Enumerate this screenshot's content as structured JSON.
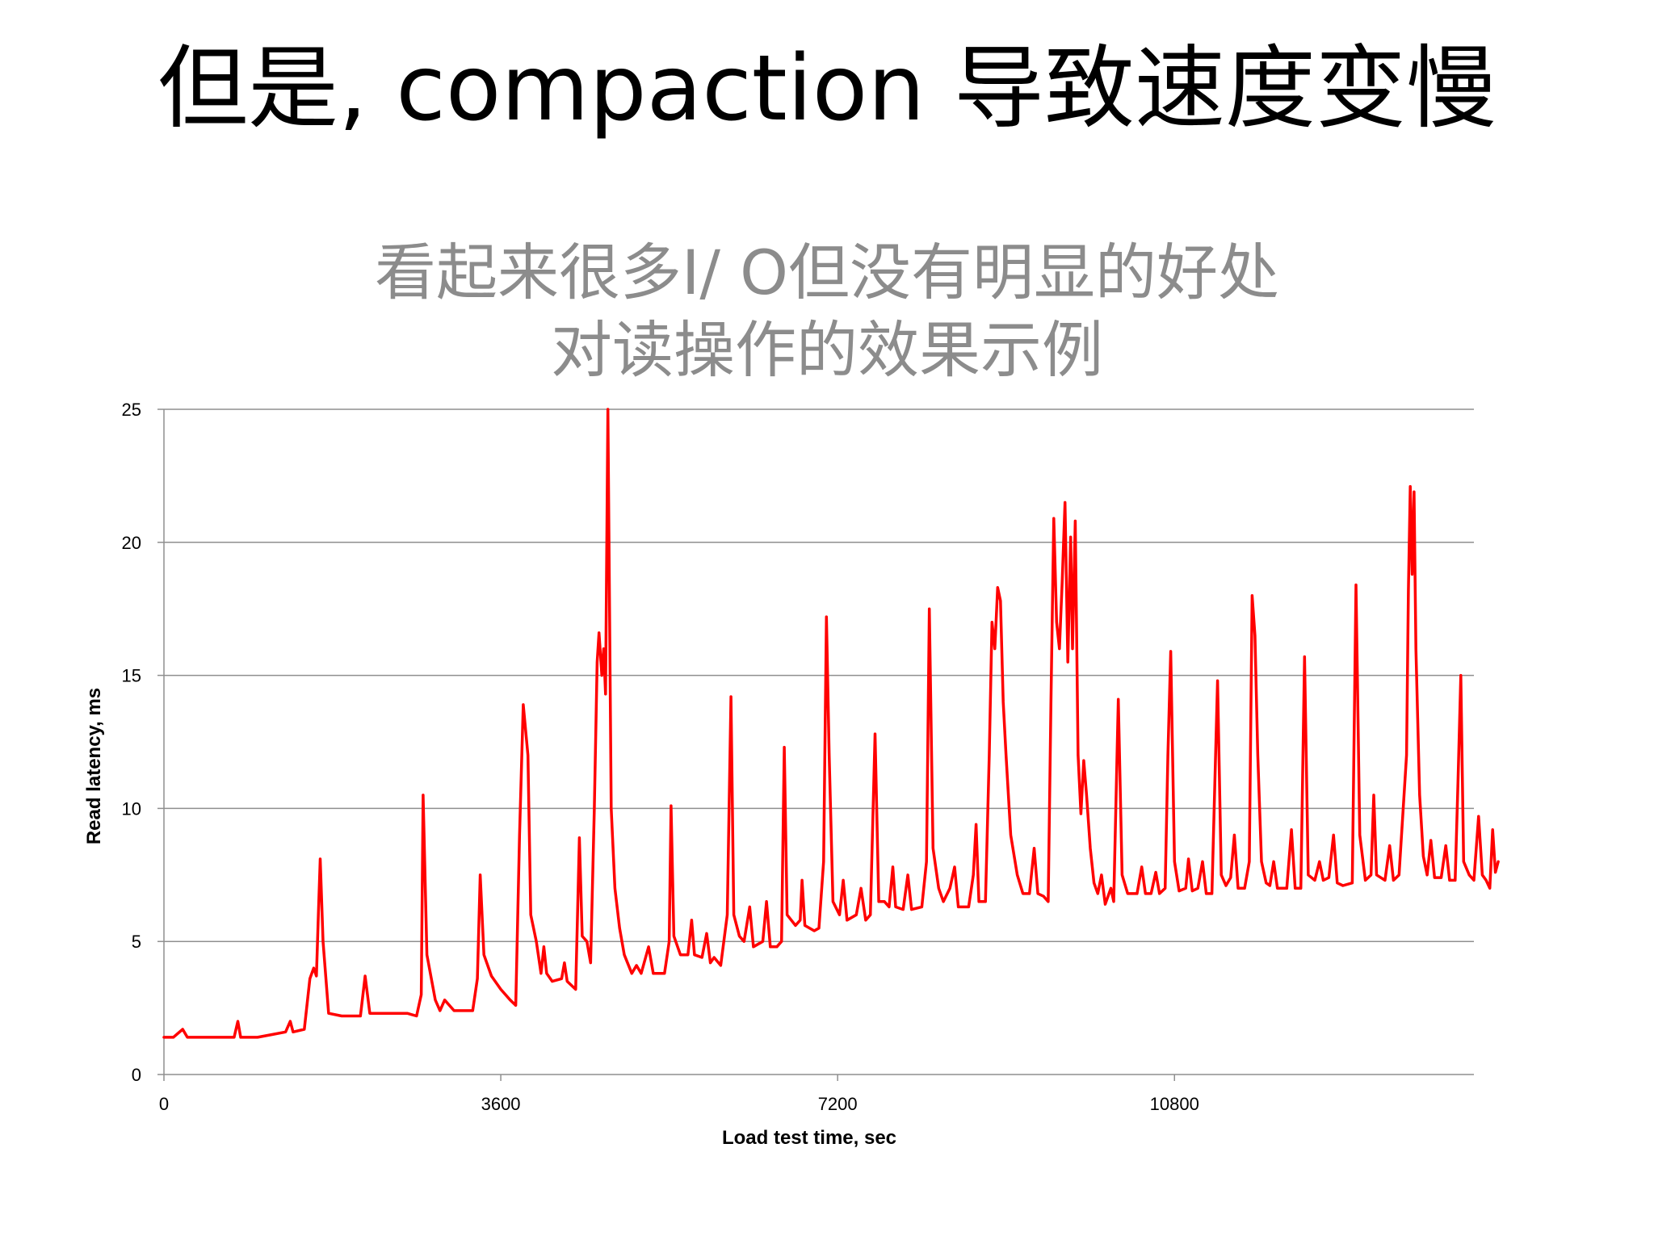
{
  "slide": {
    "title": "但是, compaction 导致速度变慢"
  },
  "chart_data": {
    "type": "line",
    "title_lines": [
      "看起来很多I/ O但没有明显的好处",
      "对读操作的效果示例"
    ],
    "xlabel": "Load test time, sec",
    "ylabel": "Read latency, ms",
    "xlim": [
      0,
      14000
    ],
    "ylim": [
      0,
      25
    ],
    "x_ticks": [
      0,
      3600,
      7200,
      10800
    ],
    "y_ticks": [
      0,
      5,
      10,
      15,
      20,
      25
    ],
    "grid": "horizontal",
    "legend": "none",
    "series": [
      {
        "color": "#ff0000",
        "points": [
          [
            0,
            1.4
          ],
          [
            100,
            1.4
          ],
          [
            200,
            1.7
          ],
          [
            250,
            1.4
          ],
          [
            500,
            1.4
          ],
          [
            750,
            1.4
          ],
          [
            790,
            2.0
          ],
          [
            820,
            1.4
          ],
          [
            1000,
            1.4
          ],
          [
            1150,
            1.5
          ],
          [
            1300,
            1.6
          ],
          [
            1350,
            2.0
          ],
          [
            1380,
            1.6
          ],
          [
            1500,
            1.7
          ],
          [
            1560,
            3.6
          ],
          [
            1600,
            4.0
          ],
          [
            1630,
            3.7
          ],
          [
            1650,
            6.0
          ],
          [
            1670,
            8.1
          ],
          [
            1700,
            5.0
          ],
          [
            1760,
            2.3
          ],
          [
            1900,
            2.2
          ],
          [
            2100,
            2.2
          ],
          [
            2150,
            3.7
          ],
          [
            2200,
            2.3
          ],
          [
            2600,
            2.3
          ],
          [
            2700,
            2.2
          ],
          [
            2750,
            3.0
          ],
          [
            2770,
            10.5
          ],
          [
            2810,
            4.5
          ],
          [
            2900,
            2.8
          ],
          [
            2950,
            2.4
          ],
          [
            3000,
            2.8
          ],
          [
            3100,
            2.4
          ],
          [
            3300,
            2.4
          ],
          [
            3350,
            3.6
          ],
          [
            3380,
            7.5
          ],
          [
            3420,
            4.5
          ],
          [
            3500,
            3.7
          ],
          [
            3600,
            3.2
          ],
          [
            3700,
            2.8
          ],
          [
            3760,
            2.6
          ],
          [
            3800,
            9.0
          ],
          [
            3840,
            13.9
          ],
          [
            3890,
            12.0
          ],
          [
            3920,
            6.0
          ],
          [
            3980,
            5.0
          ],
          [
            4030,
            3.8
          ],
          [
            4060,
            4.8
          ],
          [
            4090,
            3.8
          ],
          [
            4150,
            3.5
          ],
          [
            4250,
            3.6
          ],
          [
            4280,
            4.2
          ],
          [
            4310,
            3.5
          ],
          [
            4400,
            3.2
          ],
          [
            4420,
            6.0
          ],
          [
            4440,
            8.9
          ],
          [
            4470,
            5.2
          ],
          [
            4520,
            5.0
          ],
          [
            4560,
            4.2
          ],
          [
            4600,
            10.0
          ],
          [
            4630,
            15.5
          ],
          [
            4650,
            16.6
          ],
          [
            4680,
            15.0
          ],
          [
            4700,
            16.0
          ],
          [
            4720,
            14.3
          ],
          [
            4745,
            25.0
          ],
          [
            4780,
            10.0
          ],
          [
            4820,
            7.0
          ],
          [
            4870,
            5.5
          ],
          [
            4920,
            4.5
          ],
          [
            5000,
            3.8
          ],
          [
            5050,
            4.1
          ],
          [
            5100,
            3.8
          ],
          [
            5180,
            4.8
          ],
          [
            5230,
            3.8
          ],
          [
            5350,
            3.8
          ],
          [
            5400,
            5.0
          ],
          [
            5420,
            10.1
          ],
          [
            5450,
            5.2
          ],
          [
            5520,
            4.5
          ],
          [
            5600,
            4.5
          ],
          [
            5640,
            5.8
          ],
          [
            5670,
            4.5
          ],
          [
            5750,
            4.4
          ],
          [
            5800,
            5.3
          ],
          [
            5840,
            4.2
          ],
          [
            5880,
            4.4
          ],
          [
            5950,
            4.1
          ],
          [
            6020,
            6.0
          ],
          [
            6060,
            14.2
          ],
          [
            6090,
            6.0
          ],
          [
            6150,
            5.2
          ],
          [
            6200,
            5.0
          ],
          [
            6260,
            6.3
          ],
          [
            6300,
            4.8
          ],
          [
            6400,
            5.0
          ],
          [
            6440,
            6.5
          ],
          [
            6480,
            4.8
          ],
          [
            6550,
            4.8
          ],
          [
            6600,
            5.0
          ],
          [
            6630,
            12.3
          ],
          [
            6660,
            6.0
          ],
          [
            6750,
            5.6
          ],
          [
            6800,
            5.8
          ],
          [
            6820,
            7.3
          ],
          [
            6850,
            5.6
          ],
          [
            6950,
            5.4
          ],
          [
            7000,
            5.5
          ],
          [
            7050,
            8.0
          ],
          [
            7080,
            17.2
          ],
          [
            7110,
            12.0
          ],
          [
            7150,
            6.5
          ],
          [
            7220,
            6.0
          ],
          [
            7260,
            7.3
          ],
          [
            7300,
            5.8
          ],
          [
            7400,
            6.0
          ],
          [
            7450,
            7.0
          ],
          [
            7500,
            5.8
          ],
          [
            7550,
            6.0
          ],
          [
            7600,
            12.8
          ],
          [
            7640,
            6.5
          ],
          [
            7700,
            6.5
          ],
          [
            7750,
            6.3
          ],
          [
            7790,
            7.8
          ],
          [
            7820,
            6.3
          ],
          [
            7900,
            6.2
          ],
          [
            7950,
            7.5
          ],
          [
            7990,
            6.2
          ],
          [
            8100,
            6.3
          ],
          [
            8150,
            8.0
          ],
          [
            8180,
            17.5
          ],
          [
            8220,
            8.5
          ],
          [
            8280,
            7.0
          ],
          [
            8330,
            6.5
          ],
          [
            8400,
            7.0
          ],
          [
            8450,
            7.8
          ],
          [
            8490,
            6.3
          ],
          [
            8600,
            6.3
          ],
          [
            8650,
            7.5
          ],
          [
            8680,
            9.4
          ],
          [
            8710,
            6.5
          ],
          [
            8780,
            6.5
          ],
          [
            8820,
            12.0
          ],
          [
            8850,
            17.0
          ],
          [
            8880,
            16.0
          ],
          [
            8910,
            18.3
          ],
          [
            8940,
            17.8
          ],
          [
            8970,
            14.0
          ],
          [
            9000,
            12.0
          ],
          [
            9050,
            9.0
          ],
          [
            9120,
            7.5
          ],
          [
            9180,
            6.8
          ],
          [
            9250,
            6.8
          ],
          [
            9300,
            8.5
          ],
          [
            9340,
            6.8
          ],
          [
            9400,
            6.7
          ],
          [
            9450,
            6.5
          ],
          [
            9480,
            14.0
          ],
          [
            9510,
            20.9
          ],
          [
            9540,
            17.0
          ],
          [
            9570,
            16.0
          ],
          [
            9600,
            18.5
          ],
          [
            9630,
            21.5
          ],
          [
            9660,
            15.5
          ],
          [
            9690,
            20.2
          ],
          [
            9710,
            16.0
          ],
          [
            9740,
            20.8
          ],
          [
            9770,
            12.0
          ],
          [
            9800,
            9.8
          ],
          [
            9830,
            11.8
          ],
          [
            9860,
            10.5
          ],
          [
            9900,
            8.5
          ],
          [
            9940,
            7.2
          ],
          [
            9980,
            6.8
          ],
          [
            10020,
            7.5
          ],
          [
            10060,
            6.4
          ],
          [
            10120,
            7.0
          ],
          [
            10150,
            6.5
          ],
          [
            10200,
            14.1
          ],
          [
            10240,
            7.5
          ],
          [
            10300,
            6.8
          ],
          [
            10400,
            6.8
          ],
          [
            10450,
            7.8
          ],
          [
            10490,
            6.8
          ],
          [
            10550,
            6.8
          ],
          [
            10600,
            7.6
          ],
          [
            10640,
            6.8
          ],
          [
            10700,
            7.0
          ],
          [
            10730,
            12.0
          ],
          [
            10760,
            15.9
          ],
          [
            10800,
            8.0
          ],
          [
            10850,
            6.9
          ],
          [
            10920,
            7.0
          ],
          [
            10950,
            8.1
          ],
          [
            10990,
            6.9
          ],
          [
            11050,
            7.0
          ],
          [
            11100,
            8.0
          ],
          [
            11140,
            6.8
          ],
          [
            11200,
            6.8
          ],
          [
            11260,
            14.8
          ],
          [
            11300,
            7.5
          ],
          [
            11350,
            7.1
          ],
          [
            11400,
            7.4
          ],
          [
            11440,
            9.0
          ],
          [
            11480,
            7.0
          ],
          [
            11550,
            7.0
          ],
          [
            11600,
            8.0
          ],
          [
            11630,
            18.0
          ],
          [
            11660,
            16.5
          ],
          [
            11690,
            12.0
          ],
          [
            11730,
            8.0
          ],
          [
            11780,
            7.2
          ],
          [
            11820,
            7.1
          ],
          [
            11860,
            8.0
          ],
          [
            11900,
            7.0
          ],
          [
            12000,
            7.0
          ],
          [
            12050,
            9.2
          ],
          [
            12090,
            7.0
          ],
          [
            12150,
            7.0
          ],
          [
            12190,
            15.7
          ],
          [
            12230,
            7.5
          ],
          [
            12300,
            7.3
          ],
          [
            12350,
            8.0
          ],
          [
            12390,
            7.3
          ],
          [
            12450,
            7.4
          ],
          [
            12500,
            9.0
          ],
          [
            12540,
            7.2
          ],
          [
            12600,
            7.1
          ],
          [
            12700,
            7.2
          ],
          [
            12740,
            18.4
          ],
          [
            12780,
            9.0
          ],
          [
            12840,
            7.3
          ],
          [
            12900,
            7.5
          ],
          [
            12930,
            10.5
          ],
          [
            12960,
            7.5
          ],
          [
            13050,
            7.3
          ],
          [
            13100,
            8.6
          ],
          [
            13140,
            7.3
          ],
          [
            13200,
            7.5
          ],
          [
            13280,
            12.0
          ],
          [
            13300,
            18.2
          ],
          [
            13320,
            22.1
          ],
          [
            13340,
            18.8
          ],
          [
            13360,
            21.9
          ],
          [
            13380,
            16.0
          ],
          [
            13420,
            10.5
          ],
          [
            13460,
            8.2
          ],
          [
            13500,
            7.5
          ],
          [
            13540,
            8.8
          ],
          [
            13580,
            7.4
          ],
          [
            13650,
            7.4
          ],
          [
            13700,
            8.6
          ],
          [
            13740,
            7.3
          ],
          [
            13800,
            7.3
          ],
          [
            13830,
            11.0
          ],
          [
            13860,
            15.0
          ],
          [
            13890,
            8.0
          ],
          [
            13950,
            7.5
          ],
          [
            14000,
            7.3
          ],
          [
            14050,
            9.7
          ],
          [
            14090,
            7.5
          ],
          [
            14130,
            7.3
          ],
          [
            14170,
            7.0
          ],
          [
            14200,
            9.2
          ],
          [
            14230,
            7.6
          ],
          [
            14260,
            8.0
          ]
        ]
      }
    ]
  }
}
